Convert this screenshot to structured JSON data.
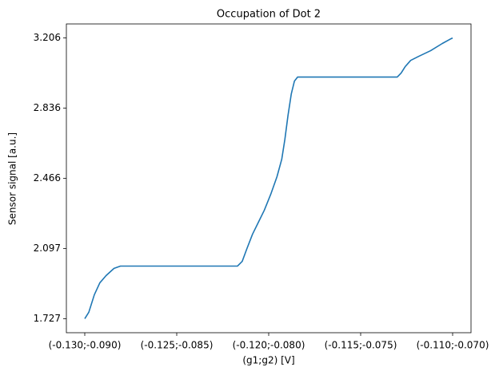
{
  "chart_data": {
    "type": "line",
    "title": "Occupation of Dot 2",
    "xlabel": "(g1;g2) [V]",
    "ylabel": "Sensor signal [a.u.]",
    "x": [
      -0.13,
      -0.12978,
      -0.12948,
      -0.12918,
      -0.12884,
      -0.12841,
      -0.12806,
      -0.12583,
      -0.12368,
      -0.1217,
      -0.12144,
      -0.12118,
      -0.12088,
      -0.12058,
      -0.12024,
      -0.11989,
      -0.11955,
      -0.11929,
      -0.11912,
      -0.11895,
      -0.11877,
      -0.1186,
      -0.11843,
      -0.11809,
      -0.11637,
      -0.11465,
      -0.11301,
      -0.1128,
      -0.11258,
      -0.11228,
      -0.11185,
      -0.1112,
      -0.11056,
      -0.11013,
      -0.11
    ],
    "series": [
      {
        "name": "Dot 2",
        "color": "#1f77b4",
        "values": [
          1.727,
          1.761,
          1.853,
          1.916,
          1.954,
          1.992,
          2.004,
          2.004,
          2.004,
          2.004,
          2.029,
          2.097,
          2.172,
          2.231,
          2.298,
          2.382,
          2.475,
          2.567,
          2.672,
          2.798,
          2.912,
          2.979,
          3.0,
          3.0,
          3.0,
          3.0,
          3.0,
          3.021,
          3.055,
          3.088,
          3.109,
          3.139,
          3.177,
          3.2,
          3.206
        ]
      }
    ],
    "xlim": [
      -0.131,
      -0.109
    ],
    "xticks": [
      {
        "value": -0.13,
        "label": "(-0.130;-0.090)"
      },
      {
        "value": -0.125,
        "label": "(-0.125;-0.085)"
      },
      {
        "value": -0.12,
        "label": "(-0.120;-0.080)"
      },
      {
        "value": -0.115,
        "label": "(-0.115;-0.075)"
      },
      {
        "value": -0.11,
        "label": "(-0.110;-0.070)"
      }
    ],
    "ylim": [
      1.653,
      3.28
    ],
    "yticks": [
      1.727,
      2.097,
      2.466,
      2.836,
      3.206
    ],
    "grid": false
  }
}
